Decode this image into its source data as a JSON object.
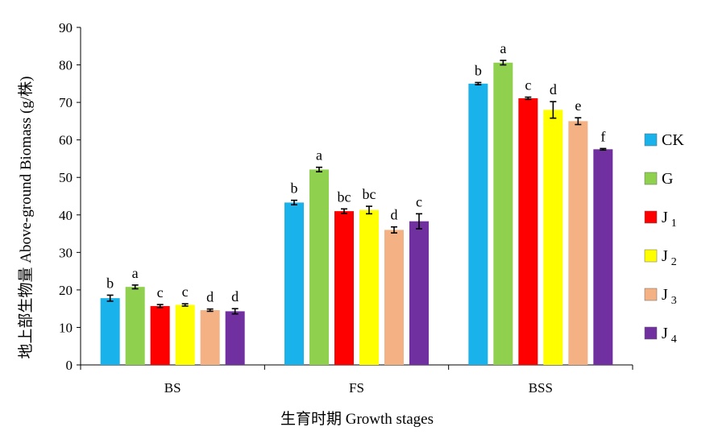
{
  "chart_data": {
    "type": "bar",
    "xlabel": "生育时期 Growth  stages",
    "ylabel": "地上部生物量 Above-ground Biomass (g/株)",
    "ylim": [
      0,
      90
    ],
    "yticks": [
      0,
      10,
      20,
      30,
      40,
      50,
      60,
      70,
      80,
      90
    ],
    "categories": [
      "BS",
      "FS",
      "BSS"
    ],
    "legend_position": "right",
    "grid": false,
    "series": [
      {
        "name": "CK",
        "base": "CK",
        "sub": "",
        "color": "#1ab2ea",
        "values": [
          17.8,
          43.3,
          75.0
        ],
        "errors": [
          0.8,
          0.6,
          0.3
        ],
        "sig": [
          "b",
          "b",
          "b"
        ]
      },
      {
        "name": "G",
        "base": "G",
        "sub": "",
        "color": "#8fd14f",
        "values": [
          20.8,
          52.1,
          80.6
        ],
        "errors": [
          0.5,
          0.6,
          0.6
        ],
        "sig": [
          "a",
          "a",
          "a"
        ]
      },
      {
        "name": "J1",
        "base": "J",
        "sub": "1",
        "color": "#ff0000",
        "values": [
          15.7,
          41.0,
          71.1
        ],
        "errors": [
          0.4,
          0.6,
          0.3
        ],
        "sig": [
          "c",
          "bc",
          "c"
        ]
      },
      {
        "name": "J2",
        "base": "J",
        "sub": "2",
        "color": "#ffff00",
        "values": [
          16.0,
          41.3,
          68.0
        ],
        "errors": [
          0.3,
          1.0,
          2.2
        ],
        "sig": [
          "c",
          "bc",
          "d"
        ]
      },
      {
        "name": "J3",
        "base": "J",
        "sub": "3",
        "color": "#f4b183",
        "values": [
          14.6,
          36.0,
          65.0
        ],
        "errors": [
          0.3,
          0.8,
          0.9
        ],
        "sig": [
          "d",
          "d",
          "e"
        ]
      },
      {
        "name": "J4",
        "base": "J",
        "sub": "4",
        "color": "#7030a0",
        "values": [
          14.3,
          38.3,
          57.5
        ],
        "errors": [
          0.7,
          2.0,
          0.2
        ],
        "sig": [
          "d",
          "c",
          "f"
        ]
      }
    ]
  }
}
